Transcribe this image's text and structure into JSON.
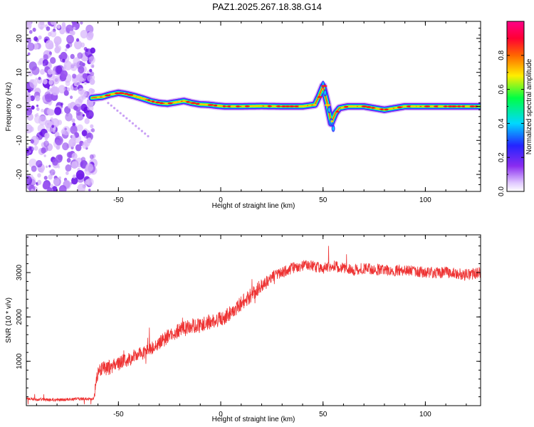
{
  "title": "PAZ1.2025.267.18.38.G14",
  "chart_data": [
    {
      "type": "heatmap",
      "xlabel": "Height of straight line (km)",
      "ylabel": "Frequency (Hz)",
      "xlim": [
        -95,
        127
      ],
      "ylim": [
        -25,
        25
      ],
      "xticks": [
        -50,
        0,
        50,
        100
      ],
      "yticks": [
        -20,
        -10,
        0,
        10,
        20
      ],
      "colorbar": {
        "label": "Normalized spectral amplitude",
        "range": [
          0,
          1
        ],
        "ticks": [
          0.0,
          0.2,
          0.4,
          0.6,
          0.8
        ],
        "colors": [
          "#ffffff",
          "#d9b3ff",
          "#7a1cf0",
          "#2222ff",
          "#00d8ff",
          "#00ff44",
          "#ffee00",
          "#ff6600",
          "#ff0044",
          "#ff0088"
        ]
      },
      "ridge": {
        "x": [
          -63,
          -58,
          -54,
          -50,
          -46,
          -42,
          -38,
          -34,
          -30,
          -26,
          -22,
          -18,
          -14,
          -10,
          -6,
          -2,
          2,
          10,
          20,
          30,
          40,
          46,
          48,
          50,
          52,
          54,
          56,
          58,
          62,
          70,
          80,
          90,
          100,
          110,
          120,
          127
        ],
        "freq": [
          2.5,
          2.8,
          3.5,
          4.0,
          3.6,
          3.0,
          2.3,
          1.5,
          1.0,
          0.8,
          1.2,
          1.6,
          1.0,
          0.6,
          0.5,
          0.2,
          0.0,
          0.0,
          0.1,
          0.0,
          0.0,
          0.5,
          3.0,
          6.0,
          1.0,
          -5.0,
          -2.0,
          -0.5,
          0.0,
          0.0,
          -1.0,
          0.0,
          0.0,
          0.0,
          0.0,
          0.0
        ]
      },
      "noise_region": {
        "x": [
          -95,
          -62
        ],
        "freq": [
          -25,
          25
        ]
      }
    },
    {
      "type": "line",
      "xlabel": "Height of straight line (km)",
      "ylabel": "SNR (10 * v/v)",
      "xlim": [
        -95,
        127
      ],
      "ylim": [
        0,
        3850
      ],
      "xticks": [
        -50,
        0,
        50,
        100
      ],
      "yticks": [
        1000,
        2000,
        3000
      ],
      "series": [
        {
          "color": "#ee3333",
          "x": [
            -95,
            -80,
            -70,
            -62,
            -60,
            -55,
            -50,
            -45,
            -40,
            -35,
            -30,
            -25,
            -20,
            -15,
            -10,
            -5,
            0,
            5,
            10,
            15,
            20,
            25,
            30,
            35,
            40,
            45,
            50,
            55,
            60,
            65,
            70,
            80,
            90,
            100,
            110,
            120,
            127
          ],
          "snr": [
            150,
            130,
            150,
            160,
            800,
            850,
            950,
            1050,
            1150,
            1250,
            1400,
            1600,
            1700,
            1800,
            1800,
            1900,
            1950,
            2100,
            2300,
            2500,
            2700,
            2900,
            3000,
            3100,
            3150,
            3150,
            3100,
            3150,
            3100,
            3050,
            3100,
            3050,
            3050,
            3000,
            3000,
            2950,
            3000
          ]
        }
      ]
    }
  ]
}
